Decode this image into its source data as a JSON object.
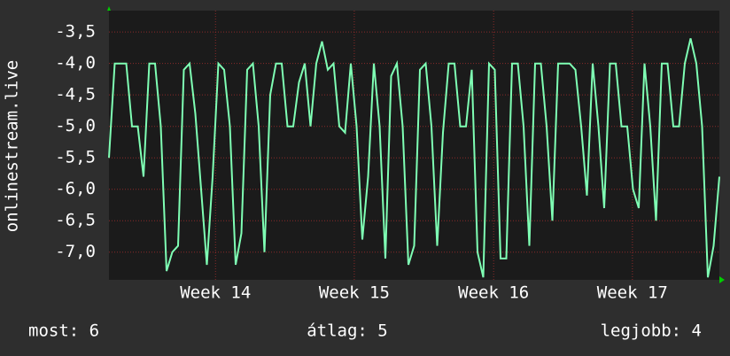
{
  "chart_data": {
    "type": "line",
    "y_label": "onlinestream.live",
    "color": "#7fffb4",
    "grid": true,
    "xlim": [
      0,
      106
    ],
    "xticks": [
      {
        "value": 18.5,
        "label": "Week 14"
      },
      {
        "value": 42.6,
        "label": "Week 15"
      },
      {
        "value": 66.8,
        "label": "Week 16"
      },
      {
        "value": 90.9,
        "label": "Week 17"
      }
    ],
    "ylim": [
      -7.44,
      -3.16
    ],
    "yticks": [
      {
        "value": -3.5,
        "label": "-3,5"
      },
      {
        "value": -4.0,
        "label": "-4,0"
      },
      {
        "value": -4.5,
        "label": "-4,5"
      },
      {
        "value": -5.0,
        "label": "-5,0"
      },
      {
        "value": -5.5,
        "label": "-5,5"
      },
      {
        "value": -6.0,
        "label": "-6,0"
      },
      {
        "value": -6.5,
        "label": "-6,5"
      },
      {
        "value": -7.0,
        "label": "-7,0"
      }
    ],
    "x": [
      0,
      1,
      2,
      3,
      4,
      5,
      6,
      7,
      8,
      9,
      10,
      11,
      12,
      13,
      14,
      15,
      16,
      17,
      18,
      19,
      20,
      21,
      22,
      23,
      24,
      25,
      26,
      27,
      28,
      29,
      30,
      31,
      32,
      33,
      34,
      35,
      36,
      37,
      38,
      39,
      40,
      41,
      42,
      43,
      44,
      45,
      46,
      47,
      48,
      49,
      50,
      51,
      52,
      53,
      54,
      55,
      56,
      57,
      58,
      59,
      60,
      61,
      62,
      63,
      64,
      65,
      66,
      67,
      68,
      69,
      70,
      71,
      72,
      73,
      74,
      75,
      76,
      77,
      78,
      79,
      80,
      81,
      82,
      83,
      84,
      85,
      86,
      87,
      88,
      89,
      90,
      91,
      92,
      93,
      94,
      95,
      96,
      97,
      98,
      99,
      100,
      101,
      102,
      103,
      104,
      105,
      106
    ],
    "values": [
      -5.5,
      -4.0,
      -4.0,
      -4.0,
      -5.0,
      -5.0,
      -5.8,
      -4.0,
      -4.0,
      -5.0,
      -7.3,
      -7.0,
      -6.9,
      -4.1,
      -4.0,
      -4.8,
      -6.0,
      -7.2,
      -5.8,
      -4.0,
      -4.1,
      -5.0,
      -7.2,
      -6.7,
      -4.1,
      -4.0,
      -5.0,
      -7.0,
      -4.5,
      -4.0,
      -4.0,
      -5.0,
      -5.0,
      -4.3,
      -4.0,
      -5.0,
      -4.0,
      -3.65,
      -4.1,
      -4.0,
      -5.0,
      -5.1,
      -4.0,
      -5.0,
      -6.8,
      -5.8,
      -4.0,
      -5.0,
      -7.1,
      -4.2,
      -4.0,
      -5.0,
      -7.2,
      -6.9,
      -4.1,
      -4.0,
      -5.0,
      -6.9,
      -5.1,
      -4.0,
      -4.0,
      -5.0,
      -5.0,
      -4.1,
      -7.0,
      -7.4,
      -4.0,
      -4.1,
      -7.1,
      -7.1,
      -4.0,
      -4.0,
      -5.0,
      -6.9,
      -4.0,
      -4.0,
      -5.0,
      -6.5,
      -4.0,
      -4.0,
      -4.0,
      -4.1,
      -5.0,
      -6.1,
      -4.0,
      -5.0,
      -6.3,
      -4.0,
      -4.0,
      -5.0,
      -5.0,
      -6.0,
      -6.3,
      -4.0,
      -5.0,
      -6.5,
      -4.0,
      -4.0,
      -5.0,
      -5.0,
      -4.0,
      -3.6,
      -4.0,
      -5.0,
      -7.4,
      -6.9,
      -5.8
    ],
    "stats": [
      "most: 6",
      "átlag: 5",
      "legjobb: 4"
    ]
  }
}
